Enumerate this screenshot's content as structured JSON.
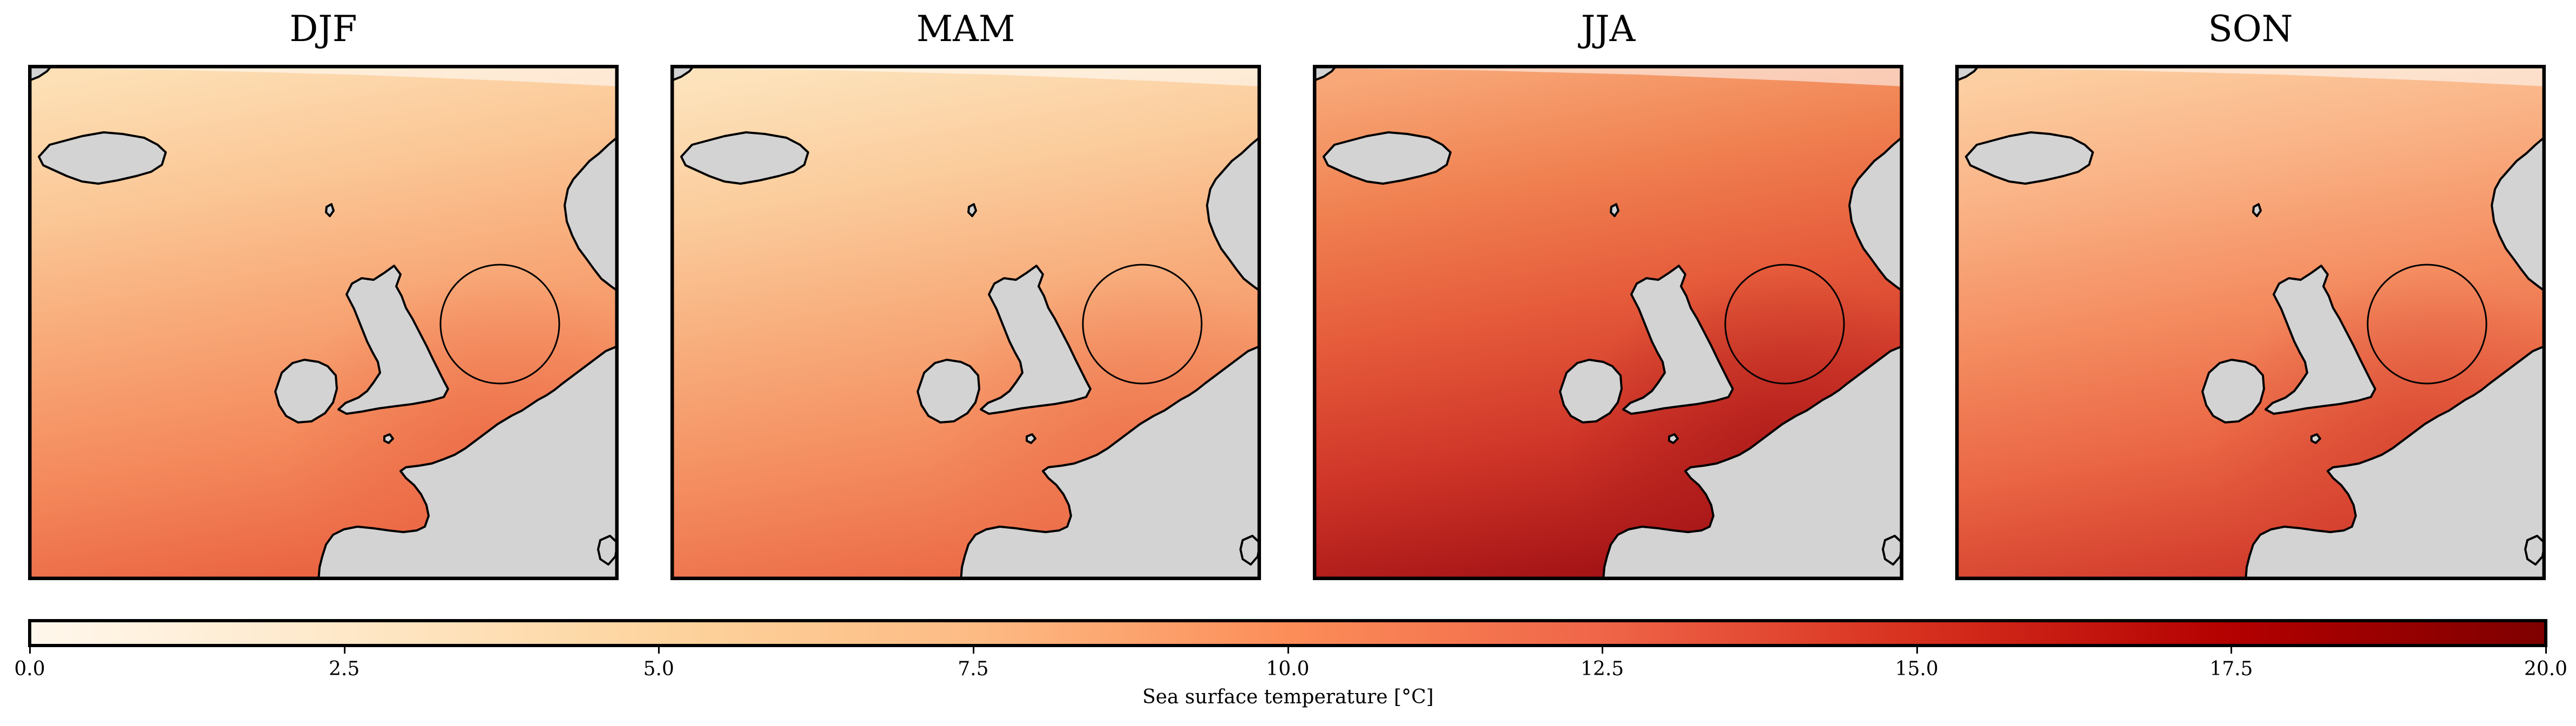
{
  "panels": [
    {
      "title": "DJF",
      "palette": [
        "#fde0b6",
        "#fbc796",
        "#f8a877",
        "#f4895c",
        "#ea6542"
      ],
      "north_sea_temp": 7.5,
      "south_edge_temp": 12.0
    },
    {
      "title": "MAM",
      "palette": [
        "#fde3bc",
        "#fbcc9c",
        "#f8ad7c",
        "#f48e60",
        "#ec6c48"
      ],
      "north_sea_temp": 8.0,
      "south_edge_temp": 12.5
    },
    {
      "title": "JJA",
      "palette": [
        "#f8a878",
        "#f08050",
        "#e55a3a",
        "#cf3528",
        "#a51416"
      ],
      "north_sea_temp": 13.5,
      "south_edge_temp": 16.5
    },
    {
      "title": "SON",
      "palette": [
        "#fccfa2",
        "#f9b083",
        "#f48c60",
        "#ea6644",
        "#d23c2c"
      ],
      "north_sea_temp": 11.0,
      "south_edge_temp": 15.5
    }
  ],
  "colorbar": {
    "label": "Sea surface temperature [°C]",
    "min": 0.0,
    "max": 20.0,
    "ticks": [
      "0.0",
      "2.5",
      "5.0",
      "7.5",
      "10.0",
      "12.5",
      "15.0",
      "17.5",
      "20.0"
    ],
    "colormap": "OrRd",
    "colors": [
      "#fff7ec",
      "#fee8c8",
      "#fdd49e",
      "#fdbb84",
      "#fc8d59",
      "#ef6548",
      "#d7301f",
      "#b30000",
      "#7f0000"
    ]
  },
  "land_color": "#d3d3d3",
  "coast_color": "#000000"
}
